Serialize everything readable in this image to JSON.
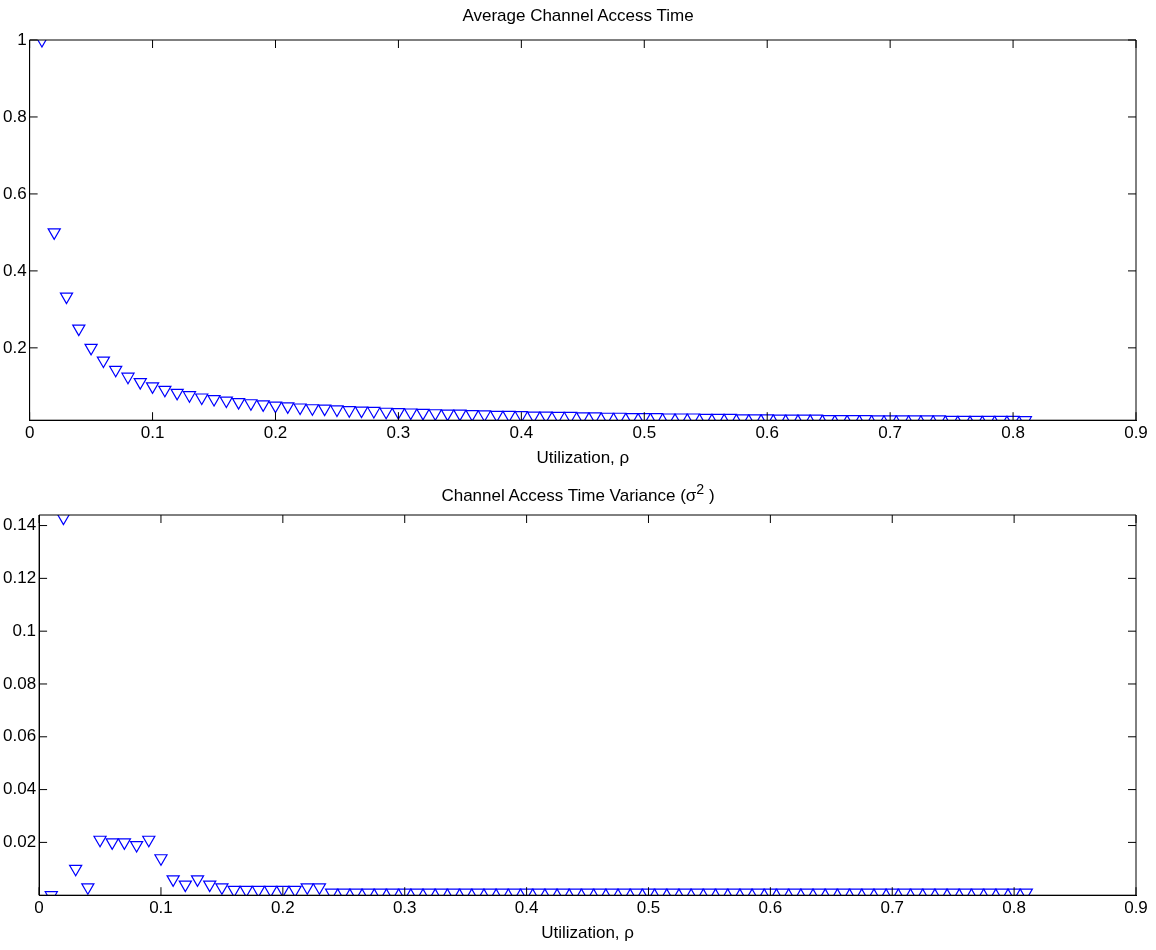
{
  "chart_data": [
    {
      "type": "scatter",
      "title": "Average Channel Access Time",
      "xlabel": "Utilization, ρ",
      "marker": "triangle",
      "legend": false,
      "grid": false,
      "x": [
        0.01,
        0.02,
        0.03,
        0.04,
        0.05,
        0.06,
        0.07,
        0.08,
        0.09,
        0.1,
        0.11,
        0.12,
        0.13,
        0.14,
        0.15,
        0.16,
        0.17,
        0.18,
        0.19,
        0.2,
        0.21,
        0.22,
        0.23,
        0.24,
        0.25,
        0.26,
        0.27,
        0.28,
        0.29,
        0.3,
        0.31,
        0.32,
        0.33,
        0.34,
        0.35,
        0.36,
        0.37,
        0.38,
        0.39,
        0.4,
        0.41,
        0.42,
        0.43,
        0.44,
        0.45,
        0.46,
        0.47,
        0.48,
        0.49,
        0.5,
        0.51,
        0.52,
        0.53,
        0.54,
        0.55,
        0.56,
        0.57,
        0.58,
        0.59,
        0.6,
        0.61,
        0.62,
        0.63,
        0.64,
        0.65,
        0.66,
        0.67,
        0.68,
        0.69,
        0.7,
        0.71,
        0.72,
        0.73,
        0.74,
        0.75,
        0.76,
        0.77,
        0.78,
        0.79,
        0.8,
        0.81
      ],
      "series": [
        {
          "color": "#0000ff",
          "values": [
            1,
            0.5,
            0.333,
            0.25,
            0.2,
            0.167,
            0.143,
            0.125,
            0.111,
            0.1,
            0.091,
            0.083,
            0.077,
            0.071,
            0.067,
            0.063,
            0.059,
            0.056,
            0.053,
            0.05,
            0.048,
            0.045,
            0.043,
            0.042,
            0.04,
            0.038,
            0.037,
            0.036,
            0.034,
            0.033,
            0.032,
            0.031,
            0.03,
            0.029,
            0.029,
            0.028,
            0.027,
            0.026,
            0.026,
            0.025,
            0.024,
            0.024,
            0.023,
            0.023,
            0.022,
            0.022,
            0.021,
            0.021,
            0.02,
            0.02,
            0.02,
            0.019,
            0.019,
            0.019,
            0.018,
            0.018,
            0.018,
            0.017,
            0.017,
            0.017,
            0.016,
            0.016,
            0.016,
            0.016,
            0.015,
            0.015,
            0.015,
            0.015,
            0.014,
            0.014,
            0.014,
            0.014,
            0.014,
            0.014,
            0.013,
            0.013,
            0.013,
            0.013,
            0.013,
            0.013,
            0.012
          ]
        }
      ],
      "xlim": [
        0,
        0.9
      ],
      "xticks": [
        0,
        0.1,
        0.2,
        0.3,
        0.4,
        0.5,
        0.6,
        0.7,
        0.8,
        0.9
      ],
      "ylim": [
        0.012,
        1
      ],
      "yticks": [
        0.2,
        0.4,
        0.6,
        0.8,
        1
      ]
    },
    {
      "type": "scatter",
      "title": "Channel Access Time Variance (σ$^{2}$ )",
      "xlabel": "Utilization, ρ",
      "marker": "triangle",
      "legend": false,
      "grid": false,
      "x": [
        0.01,
        0.02,
        0.03,
        0.04,
        0.05,
        0.06,
        0.07,
        0.08,
        0.09,
        0.1,
        0.11,
        0.12,
        0.13,
        0.14,
        0.15,
        0.16,
        0.17,
        0.18,
        0.19,
        0.2,
        0.21,
        0.22,
        0.23,
        0.24,
        0.25,
        0.26,
        0.27,
        0.28,
        0.29,
        0.3,
        0.31,
        0.32,
        0.33,
        0.34,
        0.35,
        0.36,
        0.37,
        0.38,
        0.39,
        0.4,
        0.41,
        0.42,
        0.43,
        0.44,
        0.45,
        0.46,
        0.47,
        0.48,
        0.49,
        0.5,
        0.51,
        0.52,
        0.53,
        0.54,
        0.55,
        0.56,
        0.57,
        0.58,
        0.59,
        0.6,
        0.61,
        0.62,
        0.63,
        0.64,
        0.65,
        0.66,
        0.67,
        0.68,
        0.69,
        0.7,
        0.71,
        0.72,
        0.73,
        0.74,
        0.75,
        0.76,
        0.77,
        0.78,
        0.79,
        0.8,
        0.81
      ],
      "series": [
        {
          "color": "#0000ff",
          "values": [
            0,
            0.143,
            0.01,
            0.003,
            0.021,
            0.02,
            0.02,
            0.019,
            0.021,
            0.014,
            0.006,
            0.004,
            0.006,
            0.004,
            0.003,
            0.002,
            0.002,
            0.002,
            0.002,
            0.002,
            0.002,
            0.003,
            0.003,
            0.001,
            0.001,
            0.001,
            0.001,
            0.001,
            0.001,
            0.001,
            0.001,
            0.001,
            0.001,
            0.001,
            0.001,
            0.001,
            0.001,
            0.001,
            0.001,
            0.001,
            0.001,
            0.001,
            0.001,
            0.001,
            0.001,
            0.001,
            0.001,
            0.001,
            0.001,
            0.001,
            0.001,
            0.001,
            0.001,
            0.001,
            0.001,
            0.001,
            0.001,
            0.001,
            0.001,
            0.001,
            0.001,
            0.001,
            0.001,
            0.001,
            0.001,
            0.001,
            0.001,
            0.001,
            0.001,
            0.001,
            0.001,
            0.001,
            0.001,
            0.001,
            0.001,
            0.001,
            0.001,
            0.001,
            0.001,
            0.001,
            0.001
          ]
        }
      ],
      "xlim": [
        0,
        0.9
      ],
      "xticks": [
        0,
        0.1,
        0.2,
        0.3,
        0.4,
        0.5,
        0.6,
        0.7,
        0.8,
        0.9
      ],
      "ylim": [
        0,
        0.144
      ],
      "yticks": [
        0.02,
        0.04,
        0.06,
        0.08,
        0.1,
        0.12,
        0.14
      ]
    }
  ]
}
